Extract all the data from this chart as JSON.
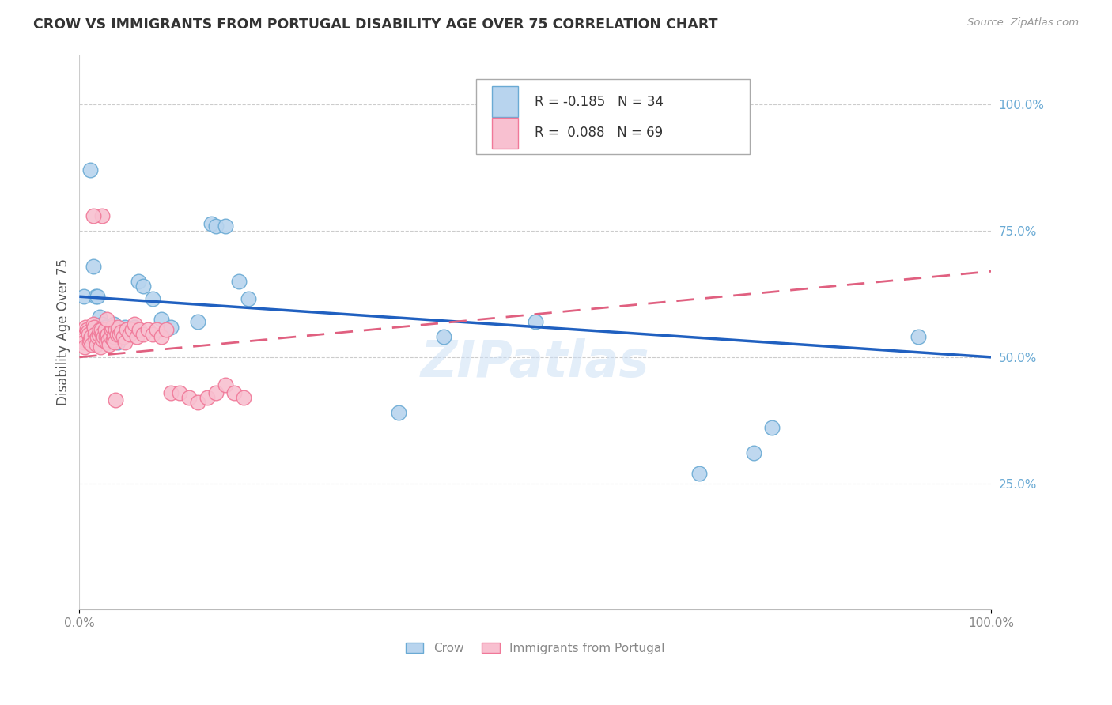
{
  "title": "CROW VS IMMIGRANTS FROM PORTUGAL DISABILITY AGE OVER 75 CORRELATION CHART",
  "source": "Source: ZipAtlas.com",
  "ylabel": "Disability Age Over 75",
  "legend_label1": "Crow",
  "legend_label2": "Immigrants from Portugal",
  "r1": "-0.185",
  "n1": "34",
  "r2": "0.088",
  "n2": "69",
  "crow_color": "#b8d4ee",
  "crow_edge_color": "#6aaad4",
  "port_color": "#f8c0d0",
  "port_edge_color": "#f07898",
  "line1_color": "#2060c0",
  "line2_color": "#e06080",
  "watermark": "ZIPatlas",
  "background_color": "#ffffff",
  "grid_color": "#cccccc",
  "crow_x": [
    0.005,
    0.012,
    0.015,
    0.018,
    0.02,
    0.022,
    0.025,
    0.028,
    0.03,
    0.032,
    0.035,
    0.038,
    0.04,
    0.042,
    0.05,
    0.06,
    0.065,
    0.07,
    0.08,
    0.09,
    0.1,
    0.13,
    0.145,
    0.15,
    0.16,
    0.175,
    0.185,
    0.35,
    0.4,
    0.5,
    0.68,
    0.74,
    0.76,
    0.92
  ],
  "crow_y": [
    0.62,
    0.87,
    0.68,
    0.62,
    0.62,
    0.58,
    0.565,
    0.56,
    0.55,
    0.53,
    0.535,
    0.565,
    0.555,
    0.53,
    0.56,
    0.56,
    0.65,
    0.64,
    0.615,
    0.575,
    0.56,
    0.57,
    0.765,
    0.76,
    0.76,
    0.65,
    0.615,
    0.39,
    0.54,
    0.57,
    0.27,
    0.31,
    0.36,
    0.54
  ],
  "port_x": [
    0.002,
    0.004,
    0.005,
    0.006,
    0.007,
    0.008,
    0.009,
    0.01,
    0.011,
    0.012,
    0.013,
    0.014,
    0.015,
    0.016,
    0.017,
    0.018,
    0.019,
    0.02,
    0.021,
    0.022,
    0.023,
    0.024,
    0.025,
    0.026,
    0.027,
    0.028,
    0.029,
    0.03,
    0.031,
    0.032,
    0.033,
    0.034,
    0.035,
    0.036,
    0.037,
    0.038,
    0.039,
    0.04,
    0.041,
    0.042,
    0.044,
    0.046,
    0.048,
    0.05,
    0.052,
    0.055,
    0.058,
    0.06,
    0.063,
    0.066,
    0.07,
    0.075,
    0.08,
    0.085,
    0.09,
    0.095,
    0.1,
    0.11,
    0.12,
    0.13,
    0.14,
    0.15,
    0.16,
    0.17,
    0.18,
    0.03,
    0.025,
    0.015,
    0.04
  ],
  "port_y": [
    0.54,
    0.535,
    0.53,
    0.52,
    0.56,
    0.555,
    0.55,
    0.545,
    0.53,
    0.535,
    0.54,
    0.525,
    0.565,
    0.56,
    0.545,
    0.535,
    0.525,
    0.54,
    0.545,
    0.555,
    0.52,
    0.555,
    0.545,
    0.535,
    0.54,
    0.555,
    0.54,
    0.53,
    0.545,
    0.535,
    0.525,
    0.54,
    0.555,
    0.56,
    0.535,
    0.54,
    0.53,
    0.555,
    0.545,
    0.56,
    0.545,
    0.55,
    0.54,
    0.53,
    0.555,
    0.545,
    0.555,
    0.565,
    0.54,
    0.555,
    0.545,
    0.555,
    0.545,
    0.555,
    0.54,
    0.555,
    0.43,
    0.43,
    0.42,
    0.41,
    0.42,
    0.43,
    0.445,
    0.43,
    0.42,
    0.575,
    0.78,
    0.78,
    0.415
  ],
  "line1_x0": 0.0,
  "line1_y0": 0.62,
  "line1_x1": 1.0,
  "line1_y1": 0.5,
  "line2_x0": 0.0,
  "line2_y0": 0.5,
  "line2_x1": 1.0,
  "line2_y1": 0.67,
  "xlim": [
    0.0,
    1.0
  ],
  "ylim": [
    0.0,
    1.1
  ],
  "yticks": [
    0.25,
    0.5,
    0.75,
    1.0
  ],
  "ytick_labels": [
    "25.0%",
    "50.0%",
    "75.0%",
    "100.0%"
  ],
  "xticks": [
    0.0,
    1.0
  ],
  "xtick_labels": [
    "0.0%",
    "100.0%"
  ]
}
